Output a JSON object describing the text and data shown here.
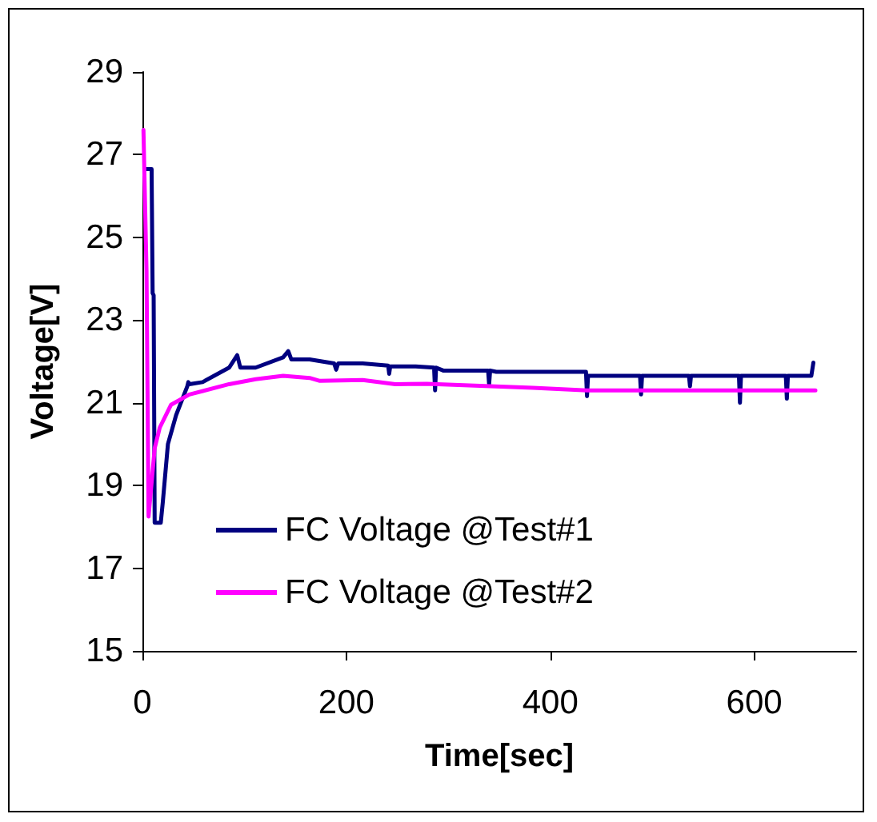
{
  "chart_data": {
    "type": "line",
    "xlabel": "Time[sec]",
    "ylabel": "Voltage[V]",
    "xlim": [
      0,
      700
    ],
    "xticks": [
      0,
      200,
      400,
      600
    ],
    "ylim": [
      15,
      29
    ],
    "yticks": [
      15,
      17,
      19,
      21,
      23,
      25,
      27,
      29
    ],
    "grid": false,
    "legend": "bottom left",
    "marker": "none",
    "line_style": "solid",
    "series": [
      {
        "name": "FC Voltage @Test#1",
        "color": "#000080",
        "x": [
          3,
          9,
          10,
          11,
          12,
          18,
          20,
          25,
          33,
          44,
          45,
          46,
          59,
          85,
          93,
          96,
          111,
          138,
          143,
          146,
          164,
          188,
          190,
          192,
          216,
          241,
          242,
          243,
          268,
          286,
          287,
          288,
          295,
          339,
          340,
          341,
          347,
          435,
          436,
          437,
          488,
          489,
          490,
          536,
          537,
          538,
          585,
          586,
          587,
          631,
          632,
          633,
          656,
          658
        ],
        "values": [
          26.65,
          26.65,
          23.65,
          23.6,
          18.1,
          18.1,
          18.6,
          20.0,
          20.7,
          21.4,
          21.5,
          21.45,
          21.5,
          21.85,
          22.15,
          21.85,
          21.85,
          22.1,
          22.25,
          22.05,
          22.05,
          21.95,
          21.8,
          21.95,
          21.95,
          21.9,
          21.7,
          21.88,
          21.88,
          21.85,
          21.3,
          21.85,
          21.78,
          21.78,
          21.45,
          21.78,
          21.75,
          21.75,
          21.16,
          21.65,
          21.65,
          21.2,
          21.65,
          21.65,
          21.4,
          21.65,
          21.65,
          21.0,
          21.65,
          21.65,
          21.1,
          21.65,
          21.65,
          21.97
        ]
      },
      {
        "name": "FC Voltage @Test#2",
        "color": "#ff00ff",
        "x": [
          1,
          4,
          5,
          6,
          12,
          17,
          28,
          46,
          85,
          111,
          138,
          164,
          174,
          216,
          248,
          279,
          383,
          436,
          660
        ],
        "values": [
          27.6,
          24.2,
          21.3,
          18.25,
          19.9,
          20.4,
          20.95,
          21.2,
          21.45,
          21.57,
          21.65,
          21.6,
          21.53,
          21.55,
          21.45,
          21.46,
          21.36,
          21.3,
          21.3
        ]
      }
    ]
  }
}
